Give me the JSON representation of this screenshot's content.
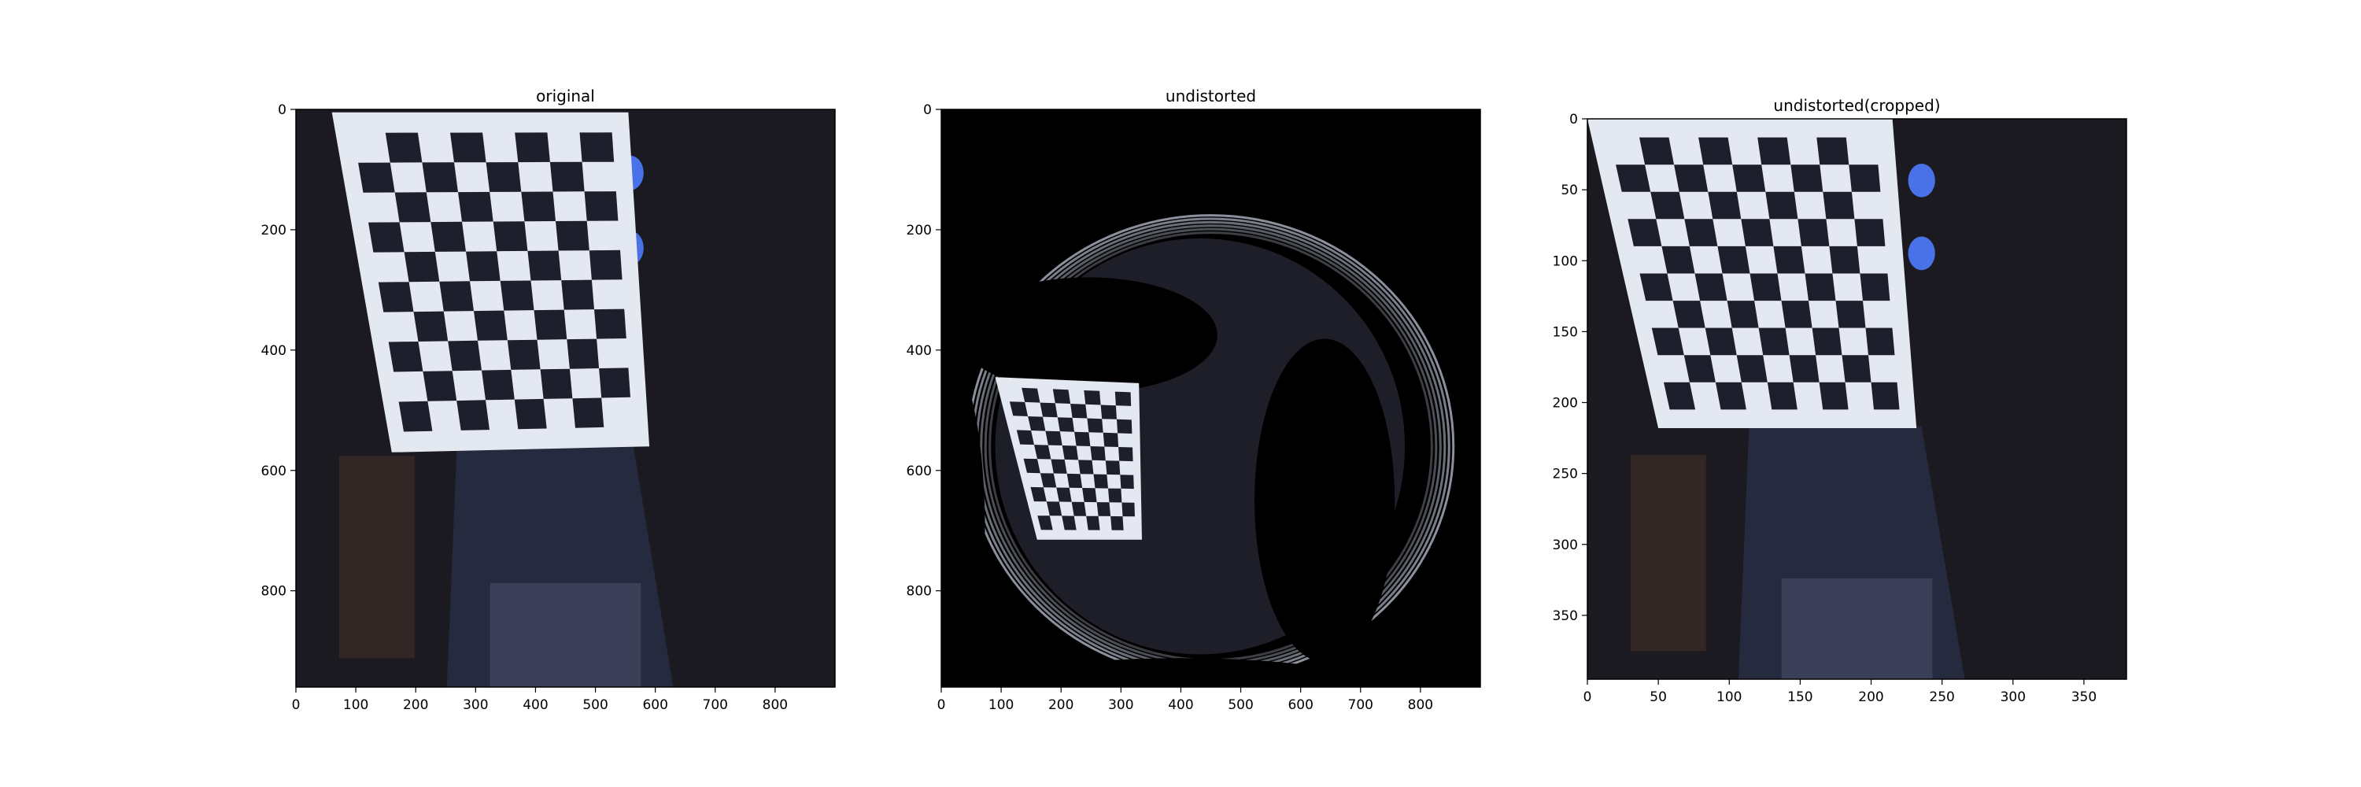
{
  "figure": {
    "background": "#ffffff",
    "frame_color": "#000000"
  },
  "chart_data": [
    {
      "type": "image",
      "title": "original",
      "xlabel": "",
      "ylabel": "",
      "xlim": [
        0,
        900
      ],
      "ylim": [
        960,
        0
      ],
      "xticks": [
        0,
        100,
        200,
        300,
        400,
        500,
        600,
        700,
        800
      ],
      "yticks": [
        0,
        200,
        400,
        600,
        800
      ],
      "image_description_tokens": [
        "checkerboard-calibration-target",
        "person",
        "dark-room"
      ],
      "board_corners": [
        [
          60,
          5
        ],
        [
          555,
          5
        ],
        [
          590,
          560
        ],
        [
          160,
          570
        ]
      ],
      "board_rows": 10,
      "board_cols": 8,
      "background_color": "#1b1a20",
      "board_color": "#e4e8f0",
      "square_color": "#1e1f2c",
      "highlight_color": "#4a72e8"
    },
    {
      "type": "image",
      "title": "undistorted",
      "xlabel": "",
      "ylabel": "",
      "xlim": [
        0,
        900
      ],
      "ylim": [
        960,
        0
      ],
      "xticks": [
        0,
        100,
        200,
        300,
        400,
        500,
        600,
        700,
        800
      ],
      "yticks": [
        0,
        200,
        400,
        600,
        800
      ],
      "image_description_tokens": [
        "fisheye-undistorted-warp",
        "checkerboard-calibration-target",
        "black-void-regions"
      ],
      "board_corners": [
        [
          90,
          445
        ],
        [
          330,
          455
        ],
        [
          335,
          715
        ],
        [
          160,
          715
        ]
      ],
      "board_rows": 10,
      "board_cols": 8,
      "background_color": "#000000",
      "board_color": "#e4e8f0",
      "square_color": "#1e1f2c",
      "ring_color": "#c7cde0"
    },
    {
      "type": "image",
      "title": "undistorted(cropped)",
      "xlabel": "",
      "ylabel": "",
      "xlim": [
        0,
        380
      ],
      "ylim": [
        395,
        0
      ],
      "xticks": [
        0,
        50,
        100,
        150,
        200,
        250,
        300,
        350
      ],
      "yticks": [
        0,
        50,
        100,
        150,
        200,
        250,
        300,
        350
      ],
      "image_description_tokens": [
        "cropped-undistorted-image",
        "checkerboard-calibration-target",
        "person"
      ],
      "board_corners": [
        [
          0,
          0
        ],
        [
          215,
          0
        ],
        [
          232,
          218
        ],
        [
          50,
          218
        ]
      ],
      "board_rows": 10,
      "board_cols": 9,
      "background_color": "#1b1a20",
      "board_color": "#e4e8f0",
      "square_color": "#1e1f2c",
      "highlight_color": "#4a72e8"
    }
  ]
}
